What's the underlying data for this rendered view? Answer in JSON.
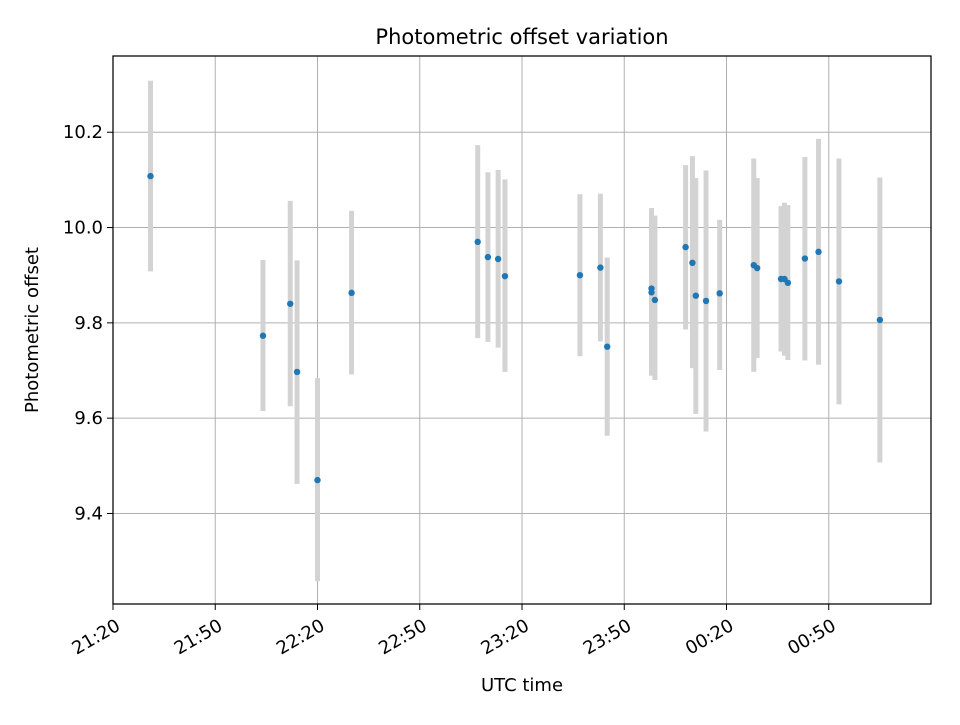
{
  "chart_data": {
    "type": "scatter",
    "title": "Photometric offset variation",
    "xlabel": "UTC time",
    "ylabel": "Photometric offset",
    "grid": true,
    "x_ticks": [
      "21:20",
      "21:50",
      "22:20",
      "22:50",
      "23:20",
      "23:50",
      "00:20",
      "00:50"
    ],
    "y_ticks": [
      "9.4",
      "9.6",
      "9.8",
      "10.0",
      "10.2"
    ],
    "y_tick_values": [
      9.4,
      9.6,
      9.8,
      10.0,
      10.2
    ],
    "xlim": [
      "21:20",
      "01:20"
    ],
    "ylim": [
      9.21,
      10.36
    ],
    "marker_color": "#1f77b4",
    "errorbar_color": "#d3d3d3",
    "points": [
      {
        "t": "21:31",
        "y": 10.108,
        "lo": 9.908,
        "hi": 10.308
      },
      {
        "t": "22:04",
        "y": 9.773,
        "lo": 9.615,
        "hi": 9.932
      },
      {
        "t": "22:12",
        "y": 9.84,
        "lo": 9.625,
        "hi": 10.056
      },
      {
        "t": "22:14",
        "y": 9.697,
        "lo": 9.462,
        "hi": 9.931
      },
      {
        "t": "22:20",
        "y": 9.47,
        "lo": 9.258,
        "hi": 9.684
      },
      {
        "t": "22:30",
        "y": 9.863,
        "lo": 9.692,
        "hi": 10.035
      },
      {
        "t": "23:07",
        "y": 9.97,
        "lo": 9.768,
        "hi": 10.173
      },
      {
        "t": "23:10",
        "y": 9.938,
        "lo": 9.76,
        "hi": 10.116
      },
      {
        "t": "23:13",
        "y": 9.934,
        "lo": 9.748,
        "hi": 10.121
      },
      {
        "t": "23:15",
        "y": 9.898,
        "lo": 9.697,
        "hi": 10.101
      },
      {
        "t": "23:37",
        "y": 9.9,
        "lo": 9.73,
        "hi": 10.07
      },
      {
        "t": "23:43",
        "y": 9.916,
        "lo": 9.761,
        "hi": 10.071
      },
      {
        "t": "23:45",
        "y": 9.75,
        "lo": 9.563,
        "hi": 9.937
      },
      {
        "t": "23:58",
        "y": 9.872,
        "lo": 9.689,
        "hi": 10.041
      },
      {
        "t": "23:58",
        "y": 9.864,
        "lo": 9.692,
        "hi": 10.035
      },
      {
        "t": "23:59",
        "y": 9.848,
        "lo": 9.68,
        "hi": 10.025
      },
      {
        "t": "00:08",
        "y": 9.959,
        "lo": 9.786,
        "hi": 10.131
      },
      {
        "t": "00:10",
        "y": 9.926,
        "lo": 9.705,
        "hi": 10.15
      },
      {
        "t": "00:11",
        "y": 9.857,
        "lo": 9.609,
        "hi": 10.104
      },
      {
        "t": "00:14",
        "y": 9.846,
        "lo": 9.572,
        "hi": 10.12
      },
      {
        "t": "00:18",
        "y": 9.862,
        "lo": 9.701,
        "hi": 10.016
      },
      {
        "t": "00:28",
        "y": 9.921,
        "lo": 9.697,
        "hi": 10.145
      },
      {
        "t": "00:29",
        "y": 9.915,
        "lo": 9.726,
        "hi": 10.104
      },
      {
        "t": "00:36",
        "y": 9.892,
        "lo": 9.74,
        "hi": 10.045
      },
      {
        "t": "00:37",
        "y": 9.892,
        "lo": 9.731,
        "hi": 10.052
      },
      {
        "t": "00:38",
        "y": 9.884,
        "lo": 9.722,
        "hi": 10.047
      },
      {
        "t": "00:43",
        "y": 9.935,
        "lo": 9.721,
        "hi": 10.148
      },
      {
        "t": "00:47",
        "y": 9.949,
        "lo": 9.712,
        "hi": 10.186
      },
      {
        "t": "00:53",
        "y": 9.887,
        "lo": 9.629,
        "hi": 10.145
      },
      {
        "t": "01:05",
        "y": 9.806,
        "lo": 9.507,
        "hi": 10.105
      }
    ]
  }
}
